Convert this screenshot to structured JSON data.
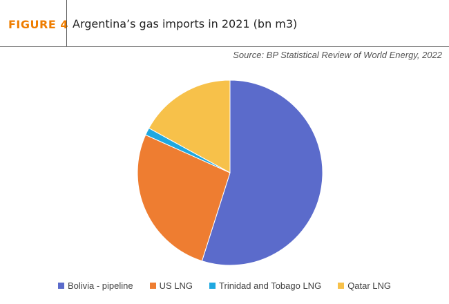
{
  "header": {
    "figure_label": "FIGURE 4",
    "title": "Argentina’s gas imports in 2021 (bn m3)"
  },
  "source": "Source: BP Statistical Review of World Energy, 2022",
  "chart_data": {
    "type": "pie",
    "title": "Argentina’s gas imports in 2021 (bn m3)",
    "categories": [
      "Bolivia - pipeline",
      "US LNG",
      "Trinidad and Tobago LNG",
      "Qatar LNG"
    ],
    "values": [
      54.9,
      26.8,
      1.3,
      17.0
    ],
    "colors": [
      "#5b6bcb",
      "#ee7d31",
      "#1fa8e0",
      "#f7c14a"
    ],
    "start": "12 o'clock",
    "direction": "clockwise",
    "legend_position": "bottom"
  }
}
